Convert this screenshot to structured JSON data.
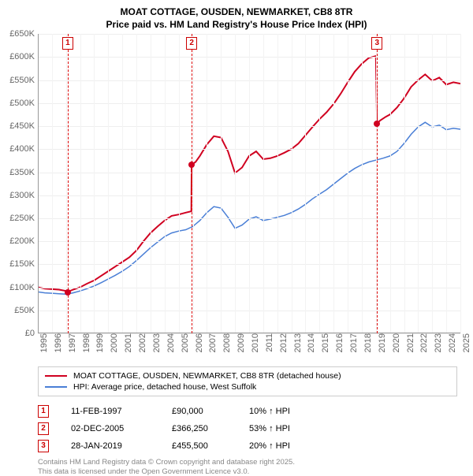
{
  "title": {
    "line1": "MOAT COTTAGE, OUSDEN, NEWMARKET, CB8 8TR",
    "line2": "Price paid vs. HM Land Registry's House Price Index (HPI)"
  },
  "chart": {
    "type": "line",
    "background_color": "#ffffff",
    "grid_color": "#eeeeee",
    "axis_color": "#999999",
    "y": {
      "min": 0,
      "max": 650000,
      "step": 50000,
      "prefix": "£",
      "suffix": "K",
      "divisor": 1000,
      "label_color": "#666666",
      "fontsize": 11
    },
    "x": {
      "min": 1995,
      "max": 2025,
      "step": 1,
      "label_color": "#666666",
      "fontsize": 11
    },
    "event_line_color": "#dd0000",
    "event_marker_border": "#cc0000",
    "event_marker_text": "#cc0000",
    "events": [
      {
        "num": "1",
        "year": 1997.12,
        "price": 90000
      },
      {
        "num": "2",
        "year": 2005.92,
        "price": 366250
      },
      {
        "num": "3",
        "year": 2019.08,
        "price": 455500
      }
    ],
    "series": [
      {
        "name": "MOAT COTTAGE, OUSDEN, NEWMARKET, CB8 8TR (detached house)",
        "color": "#d00020",
        "width": 2,
        "data": [
          [
            1995.0,
            100000
          ],
          [
            1995.5,
            97000
          ],
          [
            1996.0,
            96000
          ],
          [
            1996.5,
            95000
          ],
          [
            1997.0,
            92000
          ],
          [
            1997.12,
            90000
          ],
          [
            1997.5,
            95000
          ],
          [
            1998.0,
            100000
          ],
          [
            1998.5,
            108000
          ],
          [
            1999.0,
            115000
          ],
          [
            1999.5,
            125000
          ],
          [
            2000.0,
            135000
          ],
          [
            2000.5,
            145000
          ],
          [
            2001.0,
            155000
          ],
          [
            2001.5,
            165000
          ],
          [
            2002.0,
            180000
          ],
          [
            2002.5,
            200000
          ],
          [
            2003.0,
            218000
          ],
          [
            2003.5,
            232000
          ],
          [
            2004.0,
            245000
          ],
          [
            2004.5,
            255000
          ],
          [
            2005.0,
            258000
          ],
          [
            2005.5,
            262000
          ],
          [
            2005.9,
            265000
          ],
          [
            2005.92,
            366250
          ],
          [
            2006.2,
            372000
          ],
          [
            2006.5,
            385000
          ],
          [
            2007.0,
            410000
          ],
          [
            2007.5,
            428000
          ],
          [
            2008.0,
            425000
          ],
          [
            2008.5,
            395000
          ],
          [
            2009.0,
            348000
          ],
          [
            2009.5,
            360000
          ],
          [
            2010.0,
            385000
          ],
          [
            2010.5,
            395000
          ],
          [
            2011.0,
            378000
          ],
          [
            2011.5,
            380000
          ],
          [
            2012.0,
            385000
          ],
          [
            2012.5,
            392000
          ],
          [
            2013.0,
            400000
          ],
          [
            2013.5,
            412000
          ],
          [
            2014.0,
            430000
          ],
          [
            2014.5,
            448000
          ],
          [
            2015.0,
            465000
          ],
          [
            2015.5,
            480000
          ],
          [
            2016.0,
            498000
          ],
          [
            2016.5,
            520000
          ],
          [
            2017.0,
            545000
          ],
          [
            2017.5,
            568000
          ],
          [
            2018.0,
            585000
          ],
          [
            2018.5,
            598000
          ],
          [
            2019.0,
            602000
          ],
          [
            2019.08,
            455500
          ],
          [
            2019.3,
            462000
          ],
          [
            2019.7,
            470000
          ],
          [
            2020.0,
            475000
          ],
          [
            2020.5,
            490000
          ],
          [
            2021.0,
            510000
          ],
          [
            2021.5,
            535000
          ],
          [
            2022.0,
            550000
          ],
          [
            2022.5,
            562000
          ],
          [
            2023.0,
            548000
          ],
          [
            2023.5,
            555000
          ],
          [
            2024.0,
            540000
          ],
          [
            2024.5,
            545000
          ],
          [
            2025.0,
            542000
          ]
        ]
      },
      {
        "name": "HPI: Average price, detached house, West Suffolk",
        "color": "#4a7fd6",
        "width": 1.5,
        "data": [
          [
            1995.0,
            90000
          ],
          [
            1995.5,
            88000
          ],
          [
            1996.0,
            87000
          ],
          [
            1996.5,
            86000
          ],
          [
            1997.0,
            85000
          ],
          [
            1997.5,
            88000
          ],
          [
            1998.0,
            92000
          ],
          [
            1998.5,
            97000
          ],
          [
            1999.0,
            103000
          ],
          [
            1999.5,
            110000
          ],
          [
            2000.0,
            118000
          ],
          [
            2000.5,
            126000
          ],
          [
            2001.0,
            135000
          ],
          [
            2001.5,
            145000
          ],
          [
            2002.0,
            158000
          ],
          [
            2002.5,
            172000
          ],
          [
            2003.0,
            186000
          ],
          [
            2003.5,
            198000
          ],
          [
            2004.0,
            210000
          ],
          [
            2004.5,
            218000
          ],
          [
            2005.0,
            222000
          ],
          [
            2005.5,
            225000
          ],
          [
            2006.0,
            232000
          ],
          [
            2006.5,
            245000
          ],
          [
            2007.0,
            262000
          ],
          [
            2007.5,
            275000
          ],
          [
            2008.0,
            272000
          ],
          [
            2008.5,
            252000
          ],
          [
            2009.0,
            228000
          ],
          [
            2009.5,
            235000
          ],
          [
            2010.0,
            248000
          ],
          [
            2010.5,
            253000
          ],
          [
            2011.0,
            245000
          ],
          [
            2011.5,
            248000
          ],
          [
            2012.0,
            252000
          ],
          [
            2012.5,
            256000
          ],
          [
            2013.0,
            262000
          ],
          [
            2013.5,
            270000
          ],
          [
            2014.0,
            280000
          ],
          [
            2014.5,
            292000
          ],
          [
            2015.0,
            302000
          ],
          [
            2015.5,
            312000
          ],
          [
            2016.0,
            324000
          ],
          [
            2016.5,
            336000
          ],
          [
            2017.0,
            348000
          ],
          [
            2017.5,
            358000
          ],
          [
            2018.0,
            366000
          ],
          [
            2018.5,
            372000
          ],
          [
            2019.0,
            376000
          ],
          [
            2019.5,
            380000
          ],
          [
            2020.0,
            385000
          ],
          [
            2020.5,
            395000
          ],
          [
            2021.0,
            412000
          ],
          [
            2021.5,
            432000
          ],
          [
            2022.0,
            448000
          ],
          [
            2022.5,
            458000
          ],
          [
            2023.0,
            448000
          ],
          [
            2023.5,
            452000
          ],
          [
            2024.0,
            442000
          ],
          [
            2024.5,
            445000
          ],
          [
            2025.0,
            443000
          ]
        ]
      }
    ]
  },
  "legend": {
    "rows": [
      {
        "color": "#d00020",
        "label": "MOAT COTTAGE, OUSDEN, NEWMARKET, CB8 8TR (detached house)"
      },
      {
        "color": "#4a7fd6",
        "label": "HPI: Average price, detached house, West Suffolk"
      }
    ]
  },
  "sales": [
    {
      "num": "1",
      "date": "11-FEB-1997",
      "price": "£90,000",
      "pct": "10% ↑ HPI"
    },
    {
      "num": "2",
      "date": "02-DEC-2005",
      "price": "£366,250",
      "pct": "53% ↑ HPI"
    },
    {
      "num": "3",
      "date": "28-JAN-2019",
      "price": "£455,500",
      "pct": "20% ↑ HPI"
    }
  ],
  "footer": {
    "line1": "Contains HM Land Registry data © Crown copyright and database right 2025.",
    "line2": "This data is licensed under the Open Government Licence v3.0."
  }
}
